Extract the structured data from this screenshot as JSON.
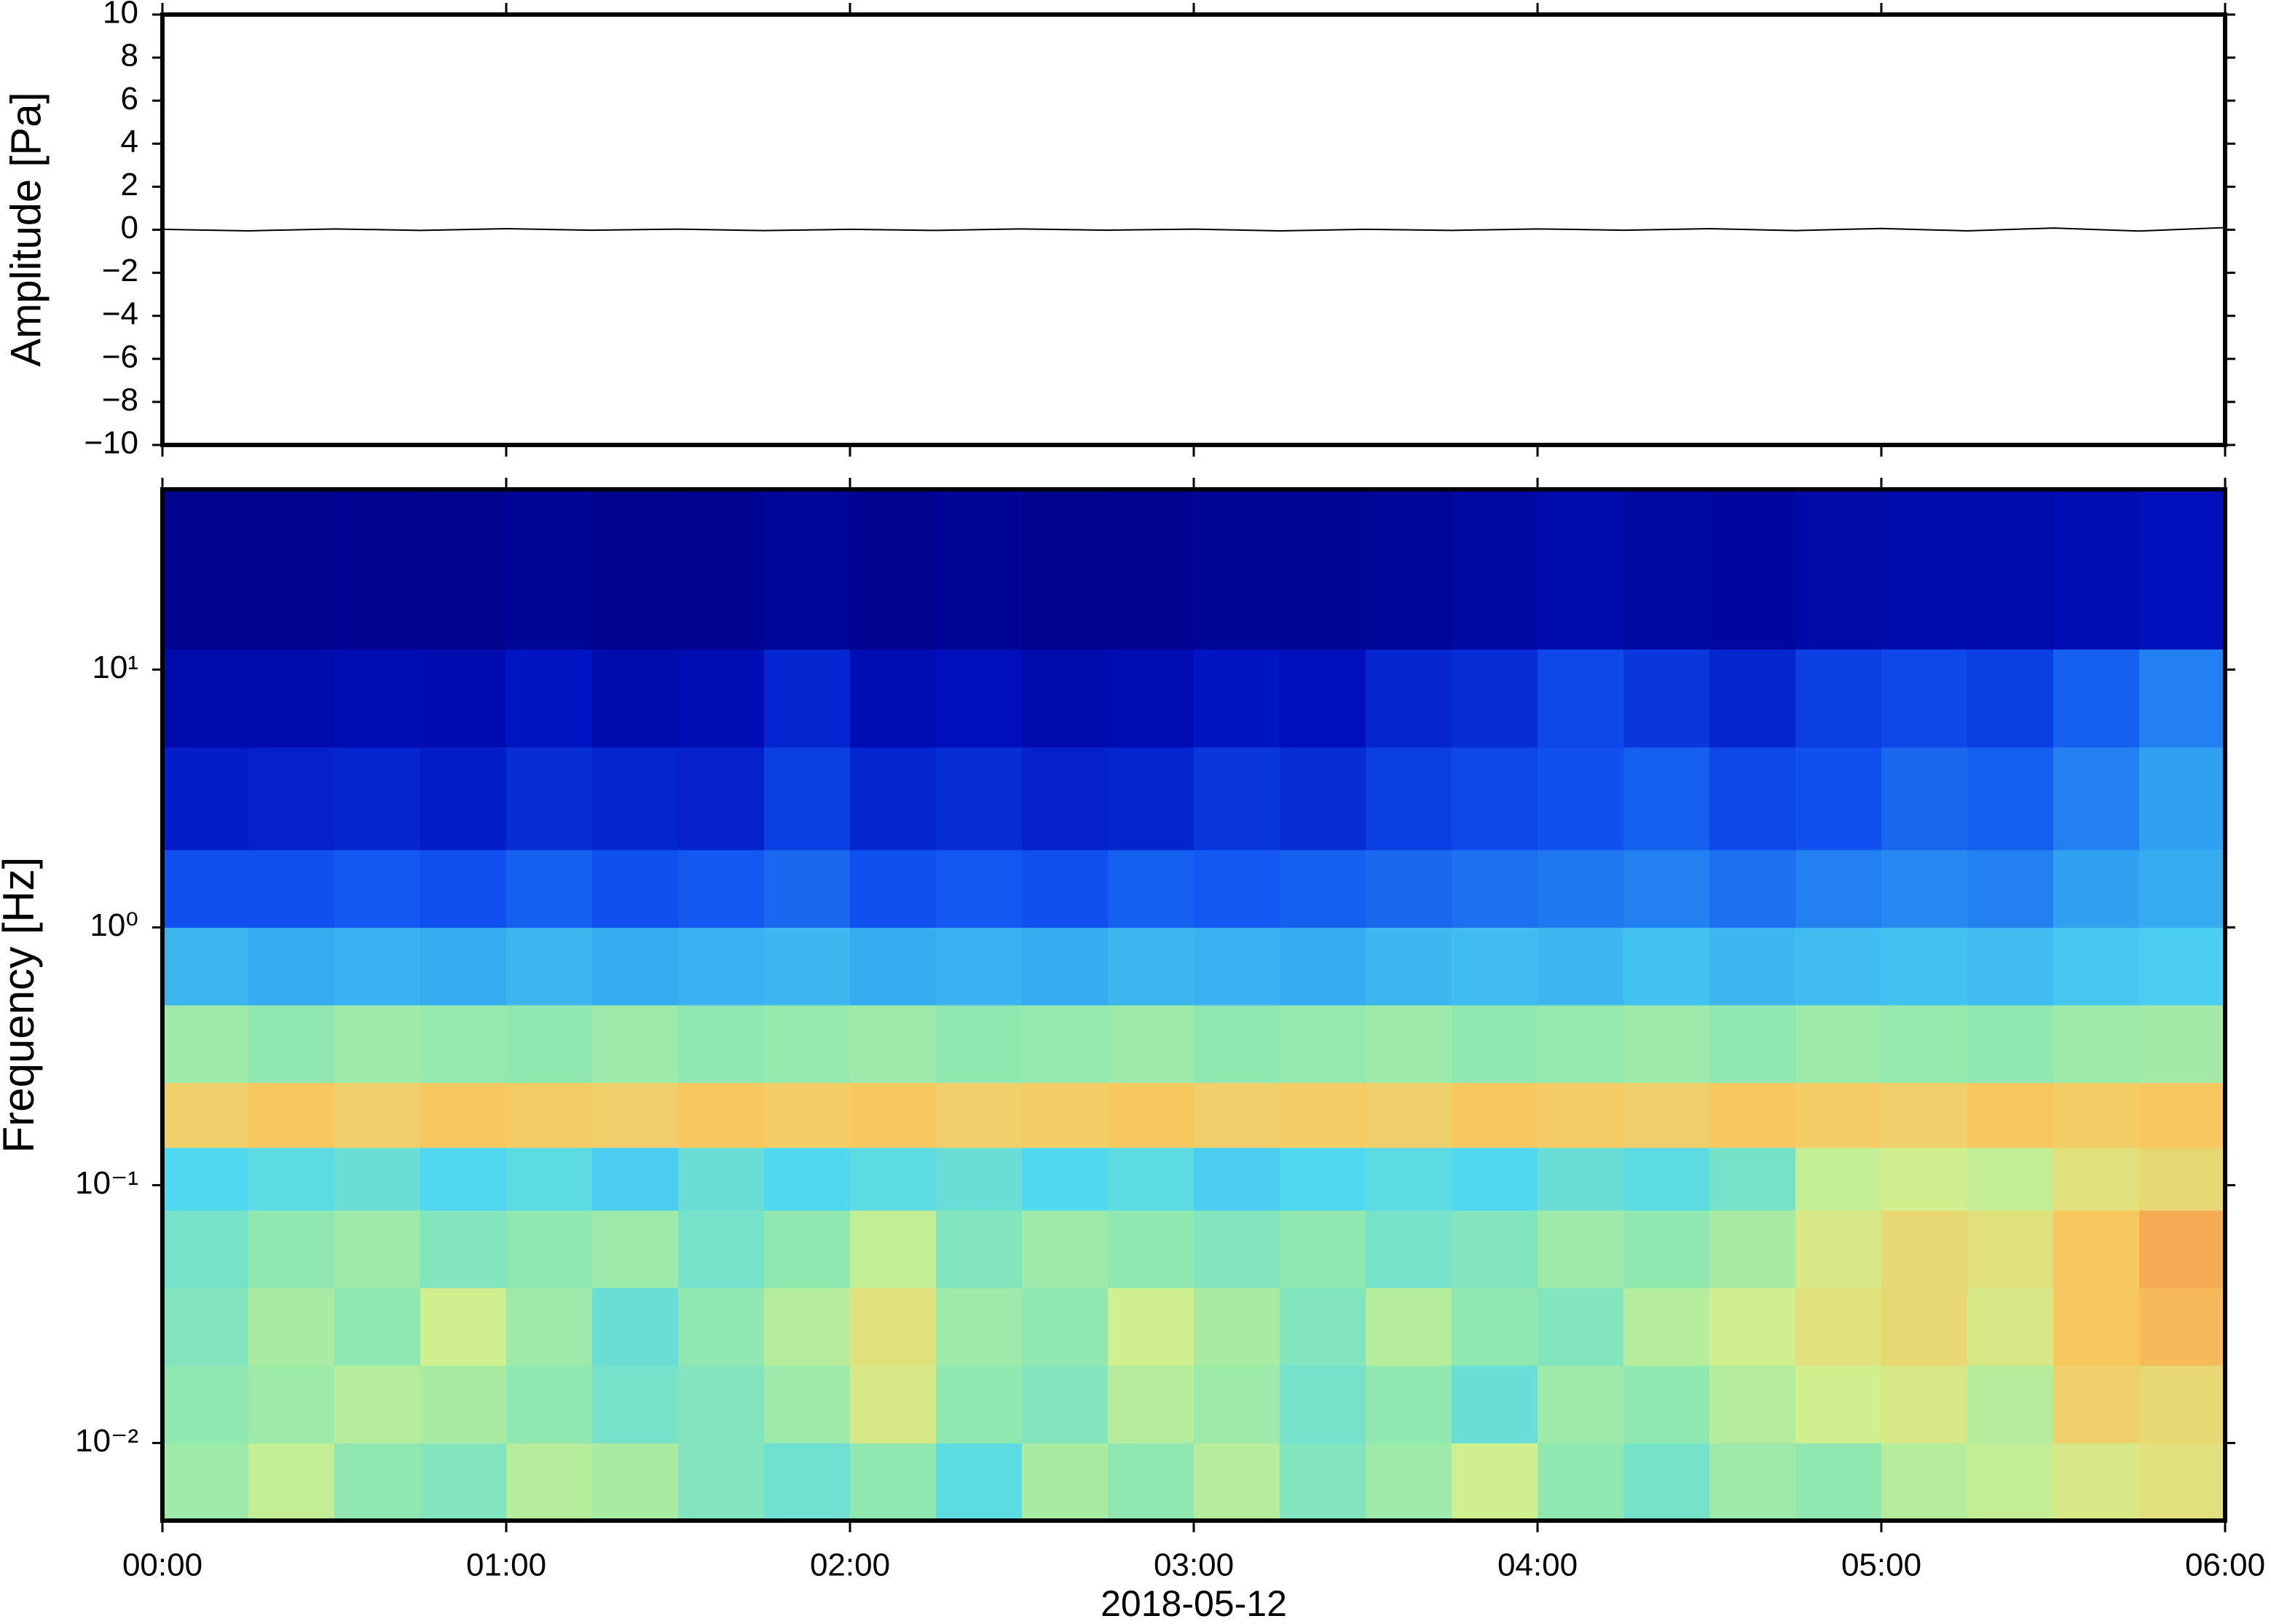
{
  "chart_data": [
    {
      "type": "line",
      "ylabel": "Amplitude [Pa]",
      "x": [
        0,
        0.25,
        0.5,
        0.75,
        1,
        1.25,
        1.5,
        1.75,
        2,
        2.25,
        2.5,
        2.75,
        3,
        3.25,
        3.5,
        3.75,
        4,
        4.25,
        4.5,
        4.75,
        5,
        5.25,
        5.5,
        5.75,
        6
      ],
      "values": [
        0.02,
        -0.05,
        0.04,
        -0.03,
        0.05,
        -0.02,
        0.03,
        -0.04,
        0.02,
        -0.03,
        0.04,
        -0.02,
        0.03,
        -0.05,
        0.02,
        -0.03,
        0.04,
        -0.02,
        0.05,
        -0.04,
        0.06,
        -0.05,
        0.08,
        -0.06,
        0.1
      ],
      "color": "#000000",
      "xlim": [
        0,
        6
      ],
      "xticks": [
        0,
        1,
        2,
        3,
        4,
        5,
        6
      ],
      "ylim": [
        -10,
        10
      ],
      "yticks": [
        {
          "value": -10,
          "label": "−10"
        },
        {
          "value": -8,
          "label": "−8"
        },
        {
          "value": -6,
          "label": "−6"
        },
        {
          "value": -4,
          "label": "−4"
        },
        {
          "value": -2,
          "label": "−2"
        },
        0,
        2,
        4,
        6,
        8,
        10
      ]
    },
    {
      "type": "heatmap",
      "ylabel": "Frequency [Hz]",
      "xlabel": "2018-05-12",
      "log_y": true,
      "x_bins": [
        0,
        0.25,
        0.5,
        0.75,
        1,
        1.25,
        1.5,
        1.75,
        2,
        2.25,
        2.5,
        2.75,
        3,
        3.25,
        3.5,
        3.75,
        4,
        4.25,
        4.5,
        4.75,
        5,
        5.25,
        5.5,
        5.75,
        6
      ],
      "y_bins": [
        0.005,
        0.01,
        0.02,
        0.04,
        0.08,
        0.14,
        0.25,
        0.5,
        1,
        2,
        5,
        12,
        50
      ],
      "z": [
        [
          0.62,
          0.68,
          0.6,
          0.58,
          0.66,
          0.64,
          0.58,
          0.55,
          0.6,
          0.52,
          0.64,
          0.6,
          0.66,
          0.58,
          0.62,
          0.7,
          0.6,
          0.56,
          0.62,
          0.6,
          0.66,
          0.68,
          0.72,
          0.74
        ],
        [
          0.6,
          0.62,
          0.66,
          0.64,
          0.6,
          0.56,
          0.58,
          0.62,
          0.72,
          0.6,
          0.58,
          0.66,
          0.62,
          0.56,
          0.6,
          0.54,
          0.62,
          0.6,
          0.66,
          0.7,
          0.72,
          0.66,
          0.78,
          0.76
        ],
        [
          0.58,
          0.64,
          0.6,
          0.7,
          0.62,
          0.54,
          0.6,
          0.66,
          0.74,
          0.62,
          0.6,
          0.7,
          0.64,
          0.58,
          0.66,
          0.6,
          0.58,
          0.66,
          0.7,
          0.74,
          0.76,
          0.72,
          0.8,
          0.82
        ],
        [
          0.56,
          0.6,
          0.62,
          0.58,
          0.6,
          0.62,
          0.56,
          0.6,
          0.68,
          0.58,
          0.62,
          0.6,
          0.58,
          0.6,
          0.56,
          0.58,
          0.62,
          0.6,
          0.64,
          0.72,
          0.76,
          0.74,
          0.8,
          0.84
        ],
        [
          0.5,
          0.52,
          0.54,
          0.5,
          0.52,
          0.48,
          0.54,
          0.5,
          0.52,
          0.54,
          0.5,
          0.52,
          0.48,
          0.5,
          0.52,
          0.5,
          0.54,
          0.52,
          0.56,
          0.68,
          0.7,
          0.68,
          0.74,
          0.76
        ],
        [
          0.78,
          0.8,
          0.78,
          0.8,
          0.79,
          0.78,
          0.8,
          0.79,
          0.8,
          0.78,
          0.79,
          0.8,
          0.78,
          0.79,
          0.78,
          0.8,
          0.79,
          0.78,
          0.8,
          0.79,
          0.78,
          0.8,
          0.79,
          0.8
        ],
        [
          0.62,
          0.6,
          0.62,
          0.61,
          0.6,
          0.62,
          0.6,
          0.61,
          0.62,
          0.6,
          0.61,
          0.62,
          0.6,
          0.61,
          0.62,
          0.6,
          0.61,
          0.62,
          0.6,
          0.62,
          0.61,
          0.6,
          0.62,
          0.63
        ],
        [
          0.44,
          0.42,
          0.43,
          0.42,
          0.44,
          0.42,
          0.43,
          0.44,
          0.42,
          0.43,
          0.42,
          0.44,
          0.43,
          0.42,
          0.44,
          0.45,
          0.44,
          0.46,
          0.44,
          0.45,
          0.46,
          0.45,
          0.47,
          0.48
        ],
        [
          0.3,
          0.3,
          0.31,
          0.3,
          0.32,
          0.3,
          0.31,
          0.33,
          0.3,
          0.31,
          0.3,
          0.32,
          0.31,
          0.32,
          0.33,
          0.34,
          0.35,
          0.36,
          0.34,
          0.36,
          0.37,
          0.36,
          0.4,
          0.42
        ],
        [
          0.18,
          0.19,
          0.2,
          0.18,
          0.22,
          0.2,
          0.19,
          0.26,
          0.2,
          0.22,
          0.19,
          0.2,
          0.24,
          0.22,
          0.26,
          0.28,
          0.3,
          0.32,
          0.28,
          0.3,
          0.33,
          0.32,
          0.36,
          0.4
        ],
        [
          0.1,
          0.1,
          0.12,
          0.11,
          0.16,
          0.1,
          0.12,
          0.2,
          0.12,
          0.14,
          0.1,
          0.12,
          0.16,
          0.14,
          0.2,
          0.22,
          0.28,
          0.24,
          0.2,
          0.26,
          0.28,
          0.26,
          0.32,
          0.36
        ],
        [
          0.03,
          0.03,
          0.04,
          0.03,
          0.05,
          0.03,
          0.04,
          0.06,
          0.04,
          0.05,
          0.03,
          0.04,
          0.05,
          0.05,
          0.06,
          0.08,
          0.1,
          0.08,
          0.07,
          0.09,
          0.1,
          0.1,
          0.12,
          0.14
        ]
      ],
      "xlim": [
        0,
        6
      ],
      "xticks": [
        {
          "value": 0,
          "label": "00:00"
        },
        {
          "value": 1,
          "label": "01:00"
        },
        {
          "value": 2,
          "label": "02:00"
        },
        {
          "value": 3,
          "label": "03:00"
        },
        {
          "value": 4,
          "label": "04:00"
        },
        {
          "value": 5,
          "label": "05:00"
        },
        {
          "value": 6,
          "label": "06:00"
        }
      ],
      "ylim": [
        0.005,
        50
      ],
      "yticks": [
        {
          "value": 0.01,
          "label": "10⁻²"
        },
        {
          "value": 0.1,
          "label": "10⁻¹"
        },
        {
          "value": 1,
          "label": "10⁰"
        },
        {
          "value": 10,
          "label": "10¹"
        }
      ]
    }
  ]
}
